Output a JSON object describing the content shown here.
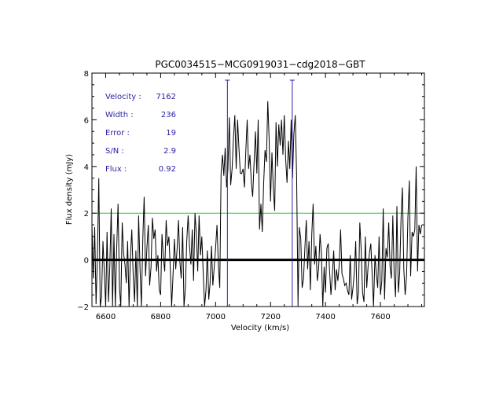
{
  "chart_data": {
    "type": "line",
    "title": "PGC0034515−MCG0919031−cdg2018−GBT",
    "xlabel": "Velocity (km/s)",
    "ylabel": "Flux density (mJy)",
    "xlim": [
      6550,
      7760
    ],
    "ylim": [
      -2,
      8
    ],
    "x_ticks": [
      "6600",
      "6800",
      "7000",
      "7200",
      "7400",
      "7600"
    ],
    "x_tick_values": [
      6600,
      6800,
      7000,
      7200,
      7400,
      7600
    ],
    "y_ticks": [
      "−2",
      "0",
      "2",
      "4",
      "6",
      "8"
    ],
    "y_tick_values": [
      -2,
      0,
      2,
      4,
      6,
      8
    ],
    "grid": false,
    "zero_line": 0,
    "threshold_line": 2,
    "markers_x": [
      7043,
      7279
    ],
    "spectrum": {
      "x_start": 6550,
      "x_step": 5,
      "values": [
        1.5,
        -0.8,
        1.4,
        -1.9,
        0.2,
        3.5,
        -2.0,
        -1.6,
        0.8,
        -0.5,
        -2.0,
        1.2,
        -1.8,
        -0.3,
        2.2,
        -2.0,
        1.1,
        -2.0,
        0.5,
        2.4,
        -1.2,
        -2.0,
        1.6,
        0.3,
        -0.2,
        -1.0,
        0.8,
        -2.0,
        0.1,
        1.3,
        -0.6,
        -1.8,
        0.4,
        -2.0,
        1.9,
        -0.4,
        -2.0,
        0.9,
        2.7,
        -0.7,
        0.5,
        1.5,
        -1.1,
        -0.3,
        1.8,
        0.9,
        1.3,
        -0.5,
        0.2,
        -1.3,
        -1.5,
        1.1,
        0.1,
        -0.5,
        1.7,
        0.6,
        1.0,
        -0.3,
        -2.0,
        -0.7,
        0.9,
        -0.4,
        0.5,
        1.7,
        -0.1,
        -0.8,
        1.4,
        -2.0,
        -1.2,
        0.8,
        1.9,
        0.6,
        -0.2,
        1.3,
        -0.9,
        2.0,
        1.1,
        -0.5,
        1.9,
        0.2,
        1.0,
        -0.6,
        -2.0,
        -1.3,
        0.4,
        -1.7,
        -1.0,
        0.6,
        -1.1,
        -0.3,
        0.5,
        1.5,
        -0.2,
        -1.2,
        3.7,
        4.5,
        3.6,
        4.8,
        3.1,
        3.9,
        6.1,
        3.2,
        3.9,
        5.2,
        6.2,
        3.9,
        6.0,
        4.8,
        3.7,
        3.7,
        3.9,
        3.1,
        4.7,
        6.0,
        3.9,
        4.5,
        3.3,
        2.7,
        4.2,
        5.5,
        3.7,
        6.0,
        1.3,
        2.4,
        1.2,
        3.3,
        4.7,
        4.2,
        6.8,
        5.1,
        2.5,
        4.6,
        3.1,
        2.1,
        5.9,
        4.0,
        5.8,
        4.9,
        6.0,
        4.5,
        6.2,
        4.3,
        3.3,
        5.1,
        3.9,
        6.0,
        3.5,
        5.4,
        6.2,
        3.6,
        -1.9,
        1.4,
        0.9,
        -1.2,
        -0.8,
        0.5,
        1.7,
        -0.4,
        0.8,
        -1.3,
        1.1,
        2.4,
        -0.2,
        0.6,
        -0.9,
        -0.4,
        1.1,
        0.3,
        -2.0,
        -0.3,
        -1.4,
        0.5,
        0.7,
        -0.5,
        -1.5,
        -0.6,
        0.4,
        -1.3,
        -0.4,
        -0.9,
        -0.2,
        1.3,
        -0.6,
        -0.8,
        -1.1,
        -1.0,
        -1.3,
        -1.5,
        0.2,
        -1.7,
        -1.2,
        -0.5,
        0.8,
        -1.9,
        -1.4,
        1.6,
        0.4,
        -1.4,
        -1.8,
        1.0,
        -1.2,
        -0.3,
        0.3,
        0.7,
        -0.7,
        -2.0,
        0.2,
        -0.6,
        -1.2,
        1.0,
        -1.5,
        -0.9,
        2.2,
        -1.7,
        0.5,
        0.1,
        1.6,
        -0.3,
        -0.8,
        1.9,
        -0.6,
        -1.6,
        2.3,
        -1.4,
        -0.6,
        1.8,
        3.1,
        -0.4,
        -1.5,
        -0.7,
        1.8,
        3.4,
        -0.7,
        1.2,
        1.0,
        1.3,
        4.0,
        -0.5,
        1.5,
        1.1,
        1.5
      ]
    },
    "stats": [
      {
        "label": "Velocity :",
        "value": "7162"
      },
      {
        "label": "Width :",
        "value": "236"
      },
      {
        "label": "Error :",
        "value": "19"
      },
      {
        "label": "S/N :",
        "value": "2.9"
      },
      {
        "label": "Flux :",
        "value": "0.92"
      }
    ],
    "colors": {
      "spectrum": "#000000",
      "zero_line": "#000000",
      "threshold_line": "#2fc82f",
      "markers": "#2a1fa0",
      "stats_text": "#2a1fa0"
    }
  }
}
